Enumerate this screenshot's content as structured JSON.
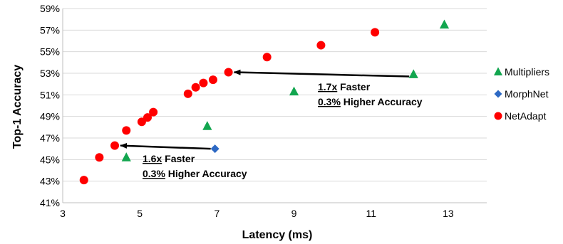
{
  "chart_data": {
    "type": "scatter",
    "xlabel": "Latency (ms)",
    "ylabel": "Top-1 Accuracy",
    "xlim": [
      3,
      14
    ],
    "ylim": [
      41,
      59
    ],
    "xticks": [
      3,
      5,
      7,
      9,
      11,
      13
    ],
    "yticks": [
      41,
      43,
      45,
      47,
      49,
      51,
      53,
      55,
      57,
      59
    ],
    "x_tick_labels": [
      "3",
      "5",
      "7",
      "9",
      "11",
      "13"
    ],
    "y_tick_labels": [
      "41%",
      "43%",
      "45%",
      "47%",
      "49%",
      "51%",
      "53%",
      "55%",
      "57%",
      "59%"
    ],
    "grid": "horizontal",
    "legend_position": "right",
    "series": [
      {
        "name": "Multipliers",
        "marker": "triangle",
        "color": "#12a64f",
        "points": [
          [
            4.65,
            45.2
          ],
          [
            6.75,
            48.1
          ],
          [
            9.0,
            51.3
          ],
          [
            12.1,
            52.9
          ],
          [
            12.9,
            57.5
          ]
        ]
      },
      {
        "name": "MorphNet",
        "marker": "diamond",
        "color": "#2d69c4",
        "points": [
          [
            6.95,
            46.0
          ]
        ]
      },
      {
        "name": "NetAdapt",
        "marker": "circle",
        "color": "#ff0000",
        "points": [
          [
            3.55,
            43.1
          ],
          [
            3.95,
            45.2
          ],
          [
            4.35,
            46.3
          ],
          [
            4.65,
            47.7
          ],
          [
            5.05,
            48.5
          ],
          [
            5.2,
            48.9
          ],
          [
            5.35,
            49.4
          ],
          [
            6.25,
            51.1
          ],
          [
            6.45,
            51.7
          ],
          [
            6.65,
            52.1
          ],
          [
            6.9,
            52.4
          ],
          [
            7.3,
            53.1
          ],
          [
            8.3,
            54.5
          ],
          [
            9.7,
            55.6
          ],
          [
            11.1,
            56.8
          ]
        ]
      }
    ],
    "annotations": [
      {
        "arrow_from": [
          6.95,
          46.0
        ],
        "arrow_to": [
          4.35,
          46.3
        ],
        "line1_value": "1.6x",
        "line1_text": " Faster",
        "line2_value": "0.3%",
        "line2_text": " Higher Accuracy"
      },
      {
        "arrow_from": [
          12.1,
          52.7
        ],
        "arrow_to": [
          7.3,
          53.1
        ],
        "line1_value": "1.7x",
        "line1_text": " Faster",
        "line2_value": "0.3%",
        "line2_text": " Higher Accuracy"
      }
    ]
  }
}
